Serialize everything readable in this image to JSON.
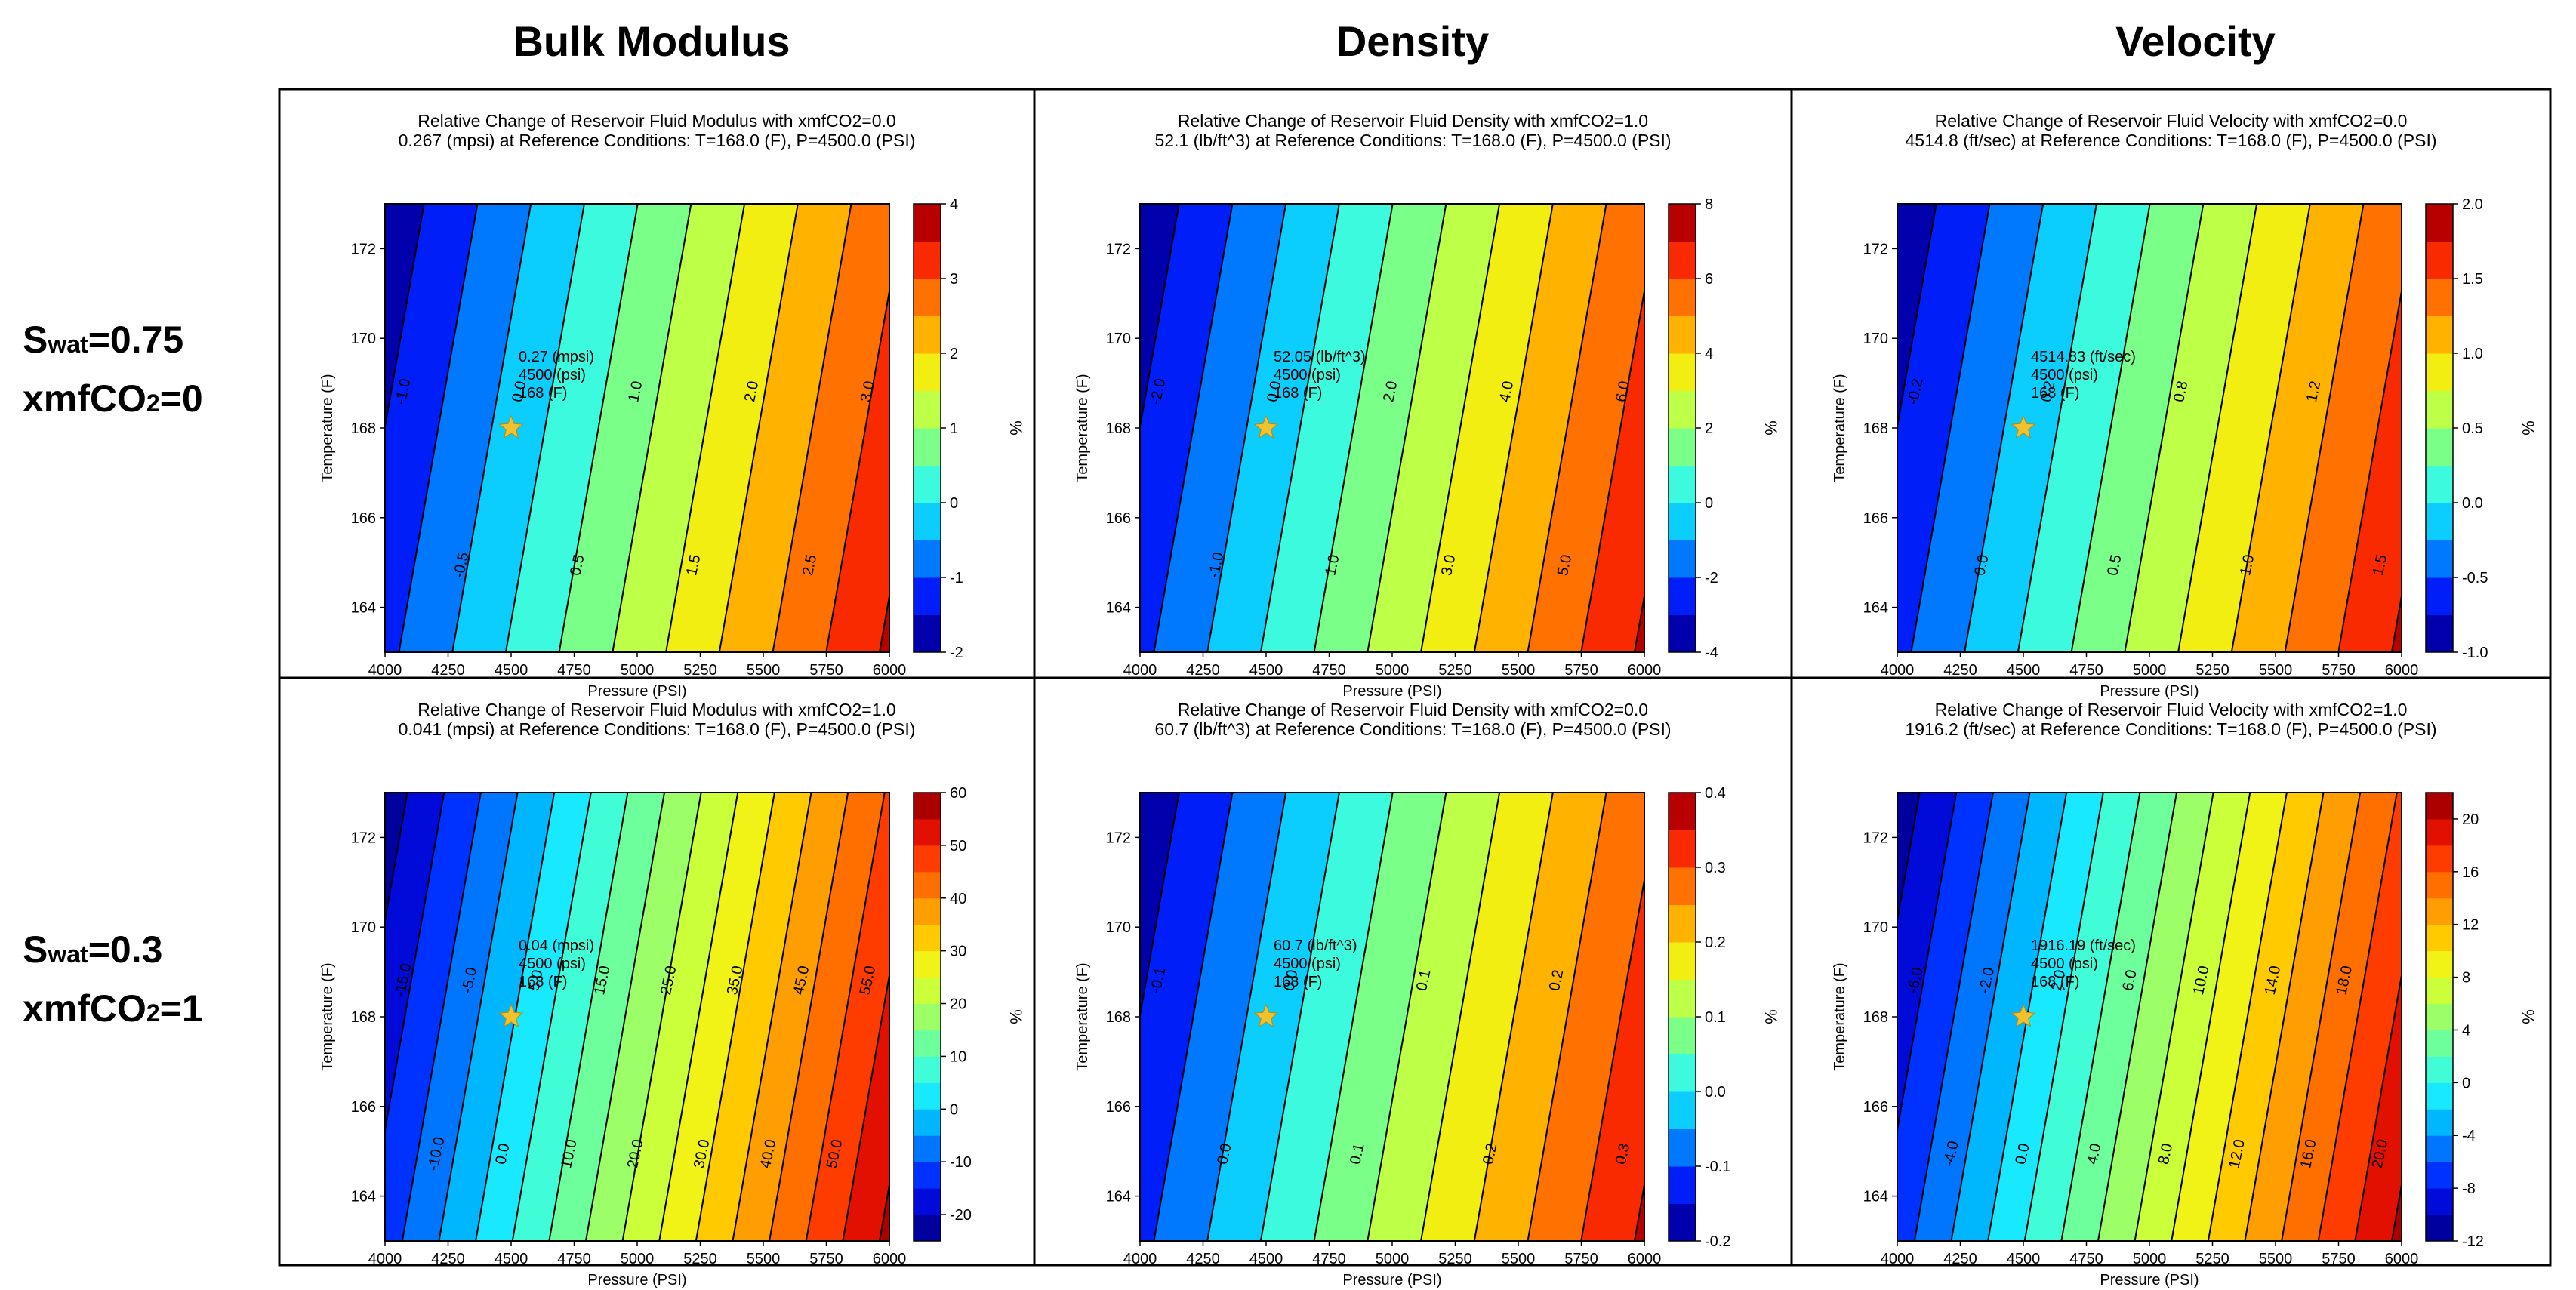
{
  "headers": {
    "bulk": "Bulk Modulus",
    "density": "Density",
    "velocity": "Velocity"
  },
  "row_labels": [
    {
      "s_main": "S",
      "s_sub": "wat",
      "s_val": "=0.75",
      "x_main": "xmfCO",
      "x_sub": "2",
      "x_val": "=0"
    },
    {
      "s_main": "S",
      "s_sub": "wat",
      "s_val": "=0.3",
      "x_main": "xmfCO",
      "x_sub": "2",
      "x_val": "=1"
    }
  ],
  "colors": {
    "stops": [
      "#00007f",
      "#0000c8",
      "#0022ff",
      "#0070ff",
      "#00b8ff",
      "#1cf2ff",
      "#4dffc8",
      "#80ff80",
      "#b8ff4d",
      "#eaff1c",
      "#ffd200",
      "#ffa000",
      "#ff6a00",
      "#ff3000",
      "#d40000",
      "#8c0000"
    ],
    "grid_border": "#000000",
    "star": "#f2c22e"
  },
  "chart_data": [
    {
      "id": "bm1",
      "type": "heatmap",
      "title_line1": "Relative Change of Reservoir Fluid Modulus with xmfCO2=0.0",
      "title_line2": "0.267 (mpsi) at Reference Conditions: T=168.0 (F), P=4500.0 (PSI)",
      "xlabel": "Pressure (PSI)",
      "ylabel": "Temperature (F)",
      "xlim": [
        4000,
        6000
      ],
      "ylim": [
        163,
        173
      ],
      "xticks": [
        "4000",
        "4250",
        "4500",
        "4750",
        "5000",
        "5250",
        "5500",
        "5750",
        "6000"
      ],
      "yticks": [
        "164",
        "166",
        "168",
        "170",
        "172"
      ],
      "cbar_range": [
        -2,
        4
      ],
      "cbar_ticks": [
        "-2",
        "-1",
        "0",
        "1",
        "2",
        "3",
        "4"
      ],
      "cbar_label": "%",
      "n_bands": 12,
      "contour_labels": [
        "-1.0",
        "-0.5",
        "0.0",
        "0.5",
        "1.0",
        "1.5",
        "2.0",
        "2.5",
        "3.0"
      ],
      "annotation": [
        "0.27 (mpsi)",
        "4500 (psi)",
        "168 (F)"
      ]
    },
    {
      "id": "de1",
      "type": "heatmap",
      "title_line1": "Relative Change of Reservoir Fluid Density with xmfCO2=1.0",
      "title_line2": "52.1 (lb/ft^3) at Reference Conditions: T=168.0 (F), P=4500.0 (PSI)",
      "xlabel": "Pressure (PSI)",
      "ylabel": "Temperature (F)",
      "xlim": [
        4000,
        6000
      ],
      "ylim": [
        163,
        173
      ],
      "xticks": [
        "4000",
        "4250",
        "4500",
        "4750",
        "5000",
        "5250",
        "5500",
        "5750",
        "6000"
      ],
      "yticks": [
        "164",
        "166",
        "168",
        "170",
        "172"
      ],
      "cbar_range": [
        -4,
        8
      ],
      "cbar_ticks": [
        "-4",
        "-2",
        "0",
        "2",
        "4",
        "6",
        "8"
      ],
      "cbar_label": "%",
      "n_bands": 12,
      "contour_labels": [
        "-2.0",
        "-1.0",
        "0.0",
        "1.0",
        "2.0",
        "3.0",
        "4.0",
        "5.0",
        "6.0"
      ],
      "annotation": [
        "52.05 (lb/ft^3)",
        "4500 (psi)",
        "168 (F)"
      ]
    },
    {
      "id": "ve1",
      "type": "heatmap",
      "title_line1": "Relative Change of Reservoir Fluid Velocity with xmfCO2=0.0",
      "title_line2": "4514.8 (ft/sec) at Reference Conditions: T=168.0 (F), P=4500.0 (PSI)",
      "xlabel": "Pressure (PSI)",
      "ylabel": "Temperature (F)",
      "xlim": [
        4000,
        6000
      ],
      "ylim": [
        163,
        173
      ],
      "xticks": [
        "4000",
        "4250",
        "4500",
        "4750",
        "5000",
        "5250",
        "5500",
        "5750",
        "6000"
      ],
      "yticks": [
        "164",
        "166",
        "168",
        "170",
        "172"
      ],
      "cbar_range": [
        -1,
        2
      ],
      "cbar_ticks": [
        "-1.0",
        "-0.5",
        "0.0",
        "0.5",
        "1.0",
        "1.5",
        "2.0"
      ],
      "cbar_label": "%",
      "n_bands": 12,
      "contour_labels": [
        "-0.2",
        "0.0",
        "0.2",
        "0.5",
        "0.8",
        "1.0",
        "1.2",
        "1.5"
      ],
      "annotation": [
        "4514.83 (ft/sec)",
        "4500 (psi)",
        "168 (F)"
      ]
    },
    {
      "id": "bm2",
      "type": "heatmap",
      "title_line1": "Relative Change of Reservoir Fluid Modulus with xmfCO2=1.0",
      "title_line2": "0.041 (mpsi) at Reference Conditions: T=168.0 (F), P=4500.0 (PSI)",
      "xlabel": "Pressure (PSI)",
      "ylabel": "Temperature (F)",
      "xlim": [
        4000,
        6000
      ],
      "ylim": [
        163,
        173
      ],
      "xticks": [
        "4000",
        "4250",
        "4500",
        "4750",
        "5000",
        "5250",
        "5500",
        "5750",
        "6000"
      ],
      "yticks": [
        "164",
        "166",
        "168",
        "170",
        "172"
      ],
      "cbar_range": [
        -25,
        60
      ],
      "cbar_ticks": [
        "-20",
        "-10",
        "0",
        "10",
        "20",
        "30",
        "40",
        "50",
        "60"
      ],
      "cbar_label": "%",
      "n_bands": 17,
      "contour_labels": [
        "-15.0",
        "-10.0",
        "-5.0",
        "0.0",
        "5.0",
        "10.0",
        "15.0",
        "20.0",
        "25.0",
        "30.0",
        "35.0",
        "40.0",
        "45.0",
        "50.0",
        "55.0"
      ],
      "annotation": [
        "0.04 (mpsi)",
        "4500 (psi)",
        "168 (F)"
      ]
    },
    {
      "id": "de2",
      "type": "heatmap",
      "title_line1": "Relative Change of Reservoir Fluid Density with xmfCO2=0.0",
      "title_line2": "60.7 (lb/ft^3) at Reference Conditions: T=168.0 (F), P=4500.0 (PSI)",
      "xlabel": "Pressure (PSI)",
      "ylabel": "Temperature (F)",
      "xlim": [
        4000,
        6000
      ],
      "ylim": [
        163,
        173
      ],
      "xticks": [
        "4000",
        "4250",
        "4500",
        "4750",
        "5000",
        "5250",
        "5500",
        "5750",
        "6000"
      ],
      "yticks": [
        "164",
        "166",
        "168",
        "170",
        "172"
      ],
      "cbar_range": [
        -0.2,
        0.4
      ],
      "cbar_ticks": [
        "-0.2",
        "-0.1",
        "0.0",
        "0.1",
        "0.2",
        "0.3",
        "0.4"
      ],
      "cbar_label": "%",
      "n_bands": 12,
      "contour_labels": [
        "-0.1",
        "0.0",
        "0.0",
        "0.1",
        "0.1",
        "0.2",
        "0.2",
        "0.3"
      ],
      "annotation": [
        "60.7 (lb/ft^3)",
        "4500 (psi)",
        "168 (F)"
      ]
    },
    {
      "id": "ve2",
      "type": "heatmap",
      "title_line1": "Relative Change of Reservoir Fluid Velocity with xmfCO2=1.0",
      "title_line2": "1916.2 (ft/sec) at Reference Conditions: T=168.0 (F), P=4500.0 (PSI)",
      "xlabel": "Pressure (PSI)",
      "ylabel": "Temperature (F)",
      "xlim": [
        4000,
        6000
      ],
      "ylim": [
        163,
        173
      ],
      "xticks": [
        "4000",
        "4250",
        "4500",
        "4750",
        "5000",
        "5250",
        "5500",
        "5750",
        "6000"
      ],
      "yticks": [
        "164",
        "166",
        "168",
        "170",
        "172"
      ],
      "cbar_range": [
        -12,
        22
      ],
      "cbar_ticks": [
        "-12",
        "-8",
        "-4",
        "0",
        "4",
        "8",
        "12",
        "16",
        "20"
      ],
      "cbar_label": "%",
      "n_bands": 17,
      "contour_labels": [
        "-6.0",
        "-4.0",
        "-2.0",
        "0.0",
        "2.0",
        "4.0",
        "6.0",
        "8.0",
        "10.0",
        "12.0",
        "14.0",
        "16.0",
        "18.0",
        "20.0"
      ],
      "annotation": [
        "1916.19 (ft/sec)",
        "4500 (psi)",
        "168 (F)"
      ]
    }
  ]
}
